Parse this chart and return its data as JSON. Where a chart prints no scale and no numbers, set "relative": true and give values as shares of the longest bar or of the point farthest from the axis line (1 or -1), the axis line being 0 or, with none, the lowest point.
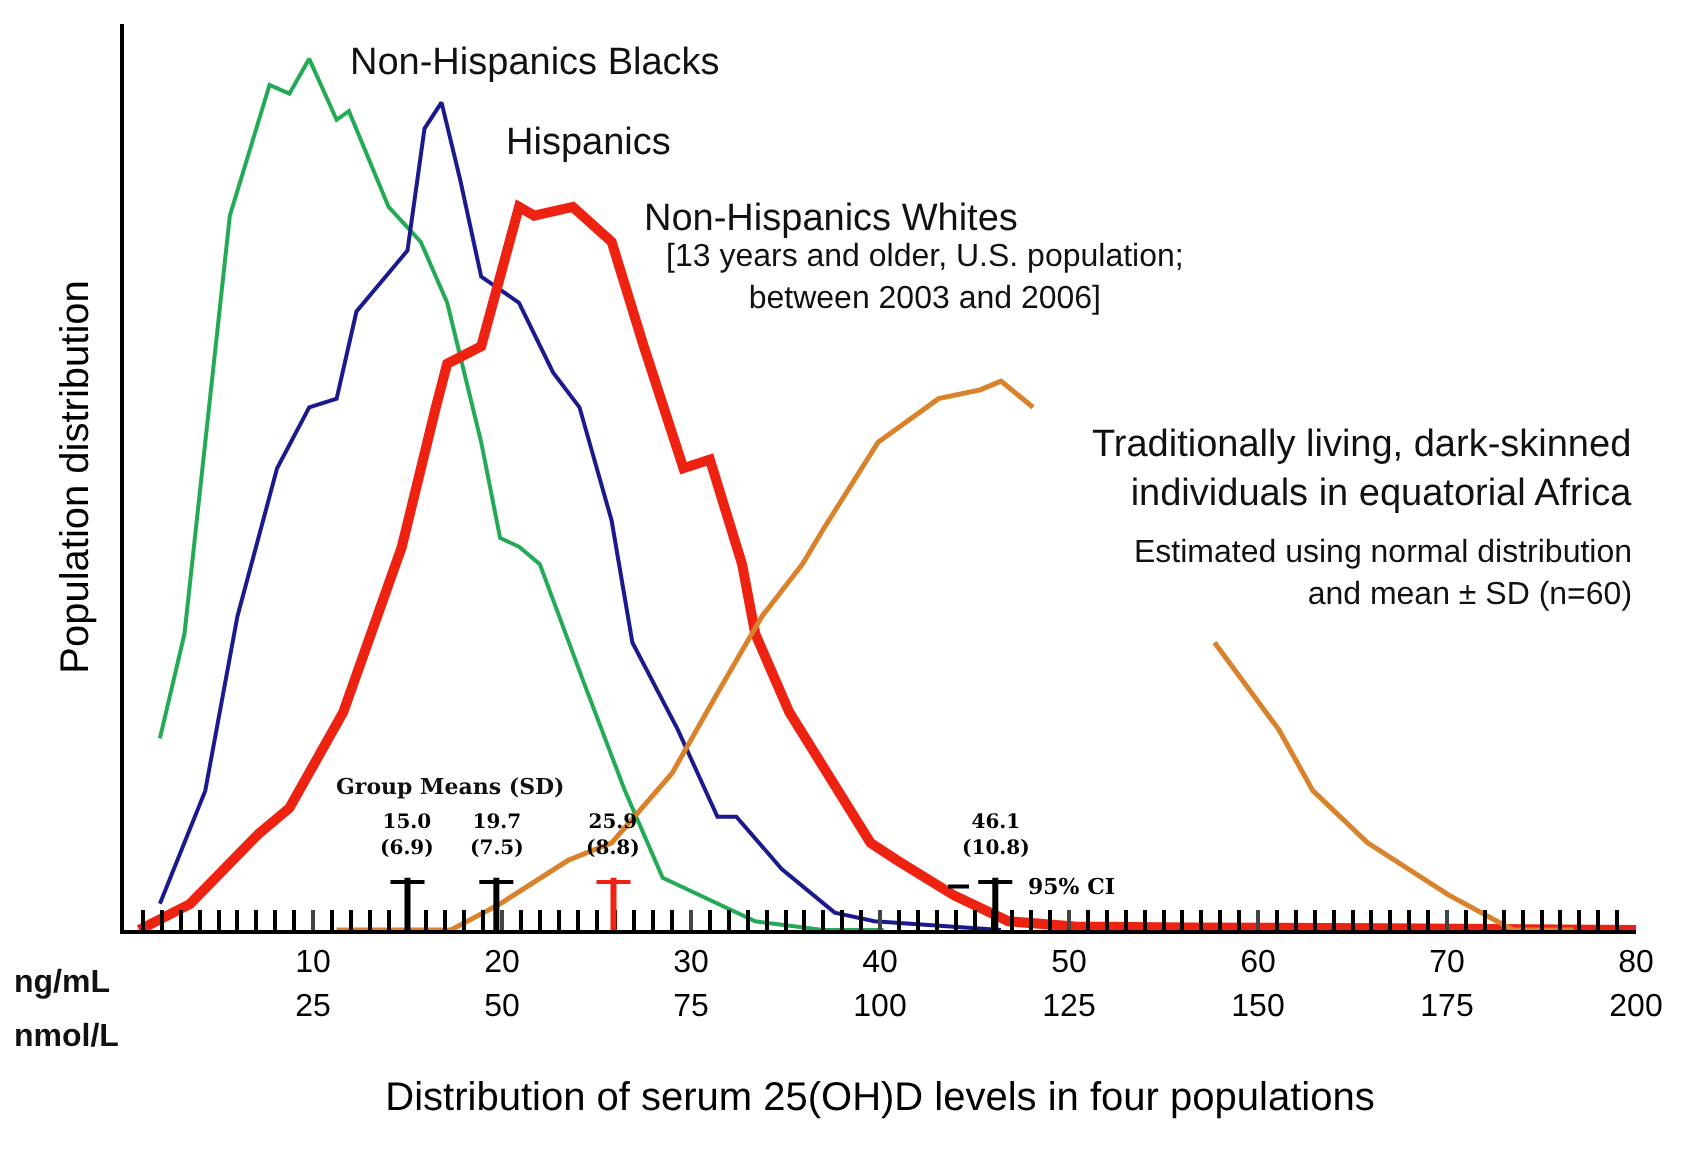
{
  "chart_data": {
    "type": "line",
    "relative": true,
    "xlabel": "Distribution of serum 25(OH)D levels in four populations",
    "ylabel": "Population distribution",
    "xlim": [
      0,
      80
    ],
    "xticks": [
      10,
      20,
      30,
      40,
      50,
      60,
      70,
      80
    ],
    "x2lim": [
      0,
      200
    ],
    "x2ticks": [
      25,
      50,
      75,
      100,
      125,
      150,
      175,
      200
    ],
    "legend": false,
    "marker": "none",
    "line_style": "solid",
    "series": [
      {
        "name": "Non-Hispanics Blacks",
        "color": "#22aa55",
        "x": [
          1.9,
          3.2,
          5.6,
          7.7,
          8.75,
          9.8,
          11.25,
          11.9,
          14.0,
          15.7,
          17.1,
          18.9,
          19.9,
          20.9,
          22.0,
          24.4,
          26.5,
          28.5,
          33.4,
          37.0,
          40.2
        ],
        "values": [
          0.22,
          0.34,
          0.82,
          0.97,
          0.96,
          1.0,
          0.93,
          0.94,
          0.83,
          0.79,
          0.72,
          0.56,
          0.45,
          0.44,
          0.42,
          0.28,
          0.16,
          0.06,
          0.01,
          0,
          0
        ]
      },
      {
        "name": "Hispanics",
        "color": "#1a1a8c",
        "x": [
          1.9,
          4.3,
          6.0,
          8.1,
          9.8,
          11.25,
          12.3,
          15.0,
          15.9,
          16.8,
          17.8,
          18.9,
          20.9,
          22.7,
          24.1,
          25.8,
          26.9,
          29.3,
          31.4,
          32.4,
          34.8,
          37.6,
          39.7,
          46.4
        ],
        "values": [
          0.03,
          0.16,
          0.36,
          0.53,
          0.6,
          0.61,
          0.71,
          0.78,
          0.92,
          0.95,
          0.86,
          0.75,
          0.72,
          0.64,
          0.6,
          0.47,
          0.33,
          0.23,
          0.13,
          0.13,
          0.07,
          0.02,
          0.01,
          0
        ]
      },
      {
        "name": "Non-Hispanics Whites",
        "color": "#ee2211",
        "x": [
          0.8,
          3.5,
          7.1,
          8.75,
          11.6,
          14.7,
          16.5,
          17.1,
          18.9,
          20.9,
          21.7,
          23.75,
          25.8,
          27.5,
          29.6,
          31.0,
          32.7,
          33.4,
          35.2,
          39.5,
          40.9,
          43.9,
          46.8,
          50.3,
          56.4,
          66.8,
          80
        ],
        "values": [
          0,
          0.03,
          0.11,
          0.14,
          0.25,
          0.44,
          0.6,
          0.65,
          0.67,
          0.83,
          0.82,
          0.83,
          0.79,
          0.67,
          0.53,
          0.54,
          0.42,
          0.34,
          0.25,
          0.1,
          0.08,
          0.04,
          0.01,
          0.004,
          0.003,
          0.002,
          0
        ]
      },
      {
        "name": "Traditionally living, dark-skinned\nindividuals in equatorial Africa",
        "color": "#d9822b",
        "x": [
          11.25,
          17.3,
          19.9,
          23.5,
          25.8,
          29.0,
          31.35,
          33.75,
          35.9,
          37.0,
          39.9,
          43.1,
          45.3,
          46.4,
          48.1,
          52,
          57.7,
          61.1,
          62.9,
          65.8,
          70.1,
          73.5,
          76.7
        ],
        "values": [
          0,
          0,
          0.03,
          0.08,
          0.1,
          0.18,
          0.27,
          0.36,
          0.42,
          0.46,
          0.56,
          0.61,
          0.62,
          0.63,
          0.6,
          null,
          0.33,
          0.23,
          0.16,
          0.1,
          0.04,
          0,
          0
        ]
      }
    ],
    "annotations": [
      "[13 years and older, U.S. population;\nbetween 2003 and 2006]",
      "Estimated using normal distribution\nand mean ± SD (n=60)",
      "Group Means (SD)",
      {
        "text": "95% CI",
        "x": 43.6,
        "y": 0.05
      },
      "ng/mL",
      "nmol/L"
    ],
    "ref_lines": [
      {
        "axis": "x",
        "value": 15.0,
        "label": "15.0\n(6.9)",
        "color": "#000000"
      },
      {
        "axis": "x",
        "value": 19.7,
        "label": "19.7\n(7.5)",
        "color": "#000000"
      },
      {
        "axis": "x",
        "value": 25.9,
        "label": "25.9\n(8.8)",
        "color": "#ee2211"
      },
      {
        "axis": "x",
        "value": 46.1,
        "label": "46.1\n(10.8)",
        "color": "#000000"
      }
    ]
  }
}
